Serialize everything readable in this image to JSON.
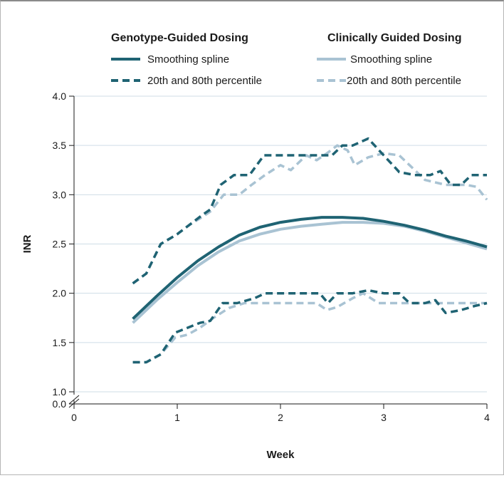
{
  "chart_data": {
    "type": "line",
    "xlabel": "Week",
    "ylabel": "INR",
    "xlim": [
      0,
      4
    ],
    "ylim": [
      0.0,
      4.0
    ],
    "axis_break": "between 0.0 and 1.0 on y-axis",
    "x_ticks": [
      "0",
      "1",
      "2",
      "3",
      "4"
    ],
    "y_ticks": [
      "0.0",
      "1.0",
      "1.5",
      "2.0",
      "2.5",
      "3.0",
      "3.5",
      "4.0"
    ],
    "grid": "horizontal",
    "legend_placement": "top",
    "legend_groups": [
      {
        "title": "Genotype-Guided Dosing",
        "color": "#1f6373",
        "entries": [
          "Smoothing spline",
          "20th and 80th percentile"
        ]
      },
      {
        "title": "Clinically Guided Dosing",
        "color": "#a9c3d3",
        "entries": [
          "Smoothing spline",
          "20th and 80th percentile"
        ]
      }
    ],
    "series": [
      {
        "group": "Genotype-Guided Dosing",
        "kind": "spline",
        "style": "solid",
        "color": "#1f6373",
        "x": [
          0.57,
          0.8,
          1.0,
          1.2,
          1.4,
          1.6,
          1.8,
          2.0,
          2.2,
          2.4,
          2.6,
          2.8,
          3.0,
          3.2,
          3.4,
          3.6,
          3.8,
          4.0
        ],
        "y": [
          1.74,
          1.97,
          2.16,
          2.33,
          2.47,
          2.59,
          2.67,
          2.72,
          2.75,
          2.77,
          2.77,
          2.76,
          2.73,
          2.69,
          2.64,
          2.58,
          2.53,
          2.47
        ]
      },
      {
        "group": "Genotype-Guided Dosing",
        "kind": "percentile-80",
        "style": "dashed",
        "color": "#1f6373",
        "x": [
          0.57,
          0.7,
          0.84,
          1.0,
          1.1,
          1.25,
          1.32,
          1.42,
          1.55,
          1.7,
          1.84,
          2.0,
          2.2,
          2.4,
          2.5,
          2.6,
          2.7,
          2.85,
          3.0,
          3.15,
          3.3,
          3.45,
          3.55,
          3.65,
          3.75,
          3.85,
          4.0
        ],
        "y": [
          2.1,
          2.2,
          2.5,
          2.6,
          2.68,
          2.8,
          2.85,
          3.1,
          3.2,
          3.2,
          3.4,
          3.4,
          3.4,
          3.4,
          3.4,
          3.5,
          3.5,
          3.57,
          3.4,
          3.23,
          3.2,
          3.2,
          3.24,
          3.1,
          3.1,
          3.2,
          3.2
        ]
      },
      {
        "group": "Genotype-Guided Dosing",
        "kind": "percentile-20",
        "style": "dashed",
        "color": "#1f6373",
        "x": [
          0.57,
          0.7,
          0.84,
          0.98,
          1.1,
          1.22,
          1.32,
          1.44,
          1.58,
          1.75,
          1.85,
          2.0,
          2.2,
          2.38,
          2.46,
          2.55,
          2.7,
          2.85,
          3.0,
          3.15,
          3.25,
          3.4,
          3.5,
          3.6,
          3.75,
          3.88,
          4.0
        ],
        "y": [
          1.3,
          1.3,
          1.38,
          1.6,
          1.65,
          1.7,
          1.72,
          1.9,
          1.9,
          1.95,
          2.0,
          2.0,
          2.0,
          2.0,
          1.9,
          2.0,
          2.0,
          2.03,
          2.0,
          2.0,
          1.9,
          1.9,
          1.93,
          1.8,
          1.83,
          1.87,
          1.9
        ]
      },
      {
        "group": "Clinically Guided Dosing",
        "kind": "spline",
        "style": "solid",
        "color": "#a9c3d3",
        "x": [
          0.57,
          0.8,
          1.0,
          1.2,
          1.4,
          1.6,
          1.8,
          2.0,
          2.2,
          2.4,
          2.6,
          2.8,
          3.0,
          3.2,
          3.4,
          3.6,
          3.8,
          4.0
        ],
        "y": [
          1.7,
          1.93,
          2.11,
          2.28,
          2.42,
          2.53,
          2.6,
          2.65,
          2.68,
          2.7,
          2.72,
          2.72,
          2.71,
          2.68,
          2.63,
          2.57,
          2.51,
          2.45
        ]
      },
      {
        "group": "Clinically Guided Dosing",
        "kind": "percentile-80",
        "style": "dashed",
        "color": "#a9c3d3",
        "x": [
          0.57,
          0.7,
          0.84,
          1.0,
          1.1,
          1.25,
          1.32,
          1.45,
          1.6,
          1.72,
          1.85,
          2.0,
          2.1,
          2.25,
          2.35,
          2.45,
          2.55,
          2.65,
          2.72,
          2.85,
          3.0,
          3.15,
          3.25,
          3.4,
          3.6,
          3.8,
          3.9,
          4.0
        ],
        "y": [
          2.1,
          2.2,
          2.5,
          2.6,
          2.68,
          2.78,
          2.83,
          3.0,
          3.0,
          3.1,
          3.2,
          3.3,
          3.25,
          3.4,
          3.35,
          3.42,
          3.5,
          3.45,
          3.3,
          3.38,
          3.42,
          3.4,
          3.3,
          3.15,
          3.1,
          3.1,
          3.08,
          2.95
        ]
      },
      {
        "group": "Clinically Guided Dosing",
        "kind": "percentile-20",
        "style": "dashed",
        "color": "#a9c3d3",
        "x": [
          0.57,
          0.7,
          0.84,
          0.98,
          1.1,
          1.22,
          1.35,
          1.5,
          1.65,
          1.8,
          2.0,
          2.2,
          2.35,
          2.45,
          2.55,
          2.7,
          2.8,
          2.95,
          3.1,
          3.3,
          3.5,
          3.7,
          3.85,
          4.0
        ],
        "y": [
          1.3,
          1.3,
          1.38,
          1.55,
          1.58,
          1.65,
          1.75,
          1.85,
          1.9,
          1.9,
          1.9,
          1.9,
          1.9,
          1.83,
          1.86,
          1.95,
          2.0,
          1.9,
          1.9,
          1.9,
          1.9,
          1.9,
          1.9,
          1.9
        ]
      }
    ]
  }
}
